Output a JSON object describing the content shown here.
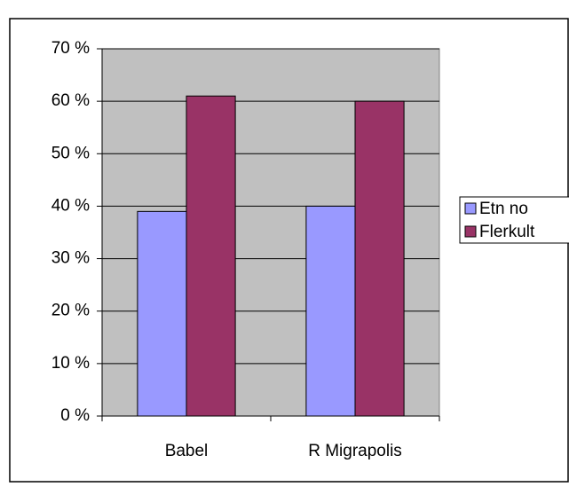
{
  "chart_data": {
    "type": "bar",
    "categories": [
      "Babel",
      "R Migrapolis"
    ],
    "series": [
      {
        "name": "Etn no",
        "color": "#9999ff",
        "values": [
          39,
          40
        ]
      },
      {
        "name": "Flerkult",
        "color": "#993366",
        "values": [
          61,
          60
        ]
      }
    ],
    "ylim": [
      0,
      70
    ],
    "yticks": [
      {
        "value": 0,
        "label": "0 %"
      },
      {
        "value": 10,
        "label": "10 %"
      },
      {
        "value": 20,
        "label": "20 %"
      },
      {
        "value": 30,
        "label": "30 %"
      },
      {
        "value": 40,
        "label": "40 %"
      },
      {
        "value": 50,
        "label": "50 %"
      },
      {
        "value": 60,
        "label": "60 %"
      },
      {
        "value": 70,
        "label": "70 %"
      }
    ],
    "grid": true,
    "legend": "right"
  }
}
